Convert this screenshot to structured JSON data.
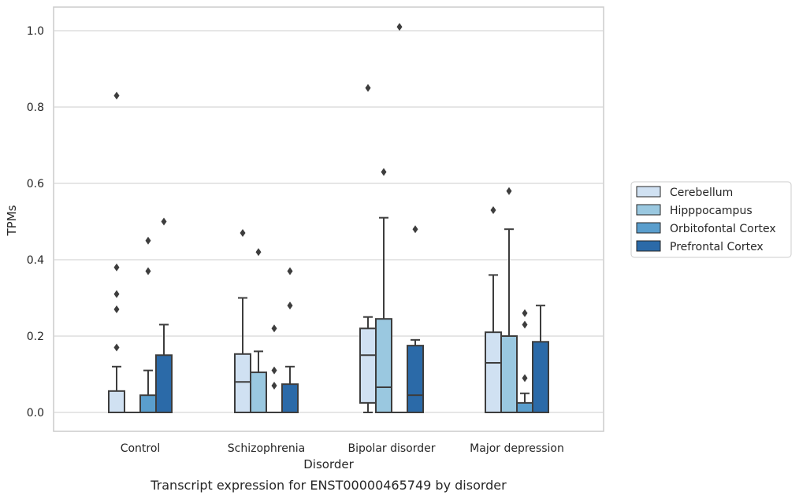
{
  "chart_data": {
    "type": "boxplot",
    "title": "",
    "caption": "Transcript expression for ENST00000465749 by disorder",
    "xlabel": "Disorder",
    "ylabel": "TPMs",
    "ylim": [
      -0.05,
      1.06
    ],
    "yticks": [
      0.0,
      0.2,
      0.4,
      0.6,
      0.8,
      1.0
    ],
    "ytick_labels": [
      "0.0",
      "0.2",
      "0.4",
      "0.6",
      "0.8",
      "1.0"
    ],
    "grid": "horizontal",
    "legend_position": "right",
    "categories": [
      "Control",
      "Schizophrenia",
      "Bipolar disorder",
      "Major depression"
    ],
    "series": [
      {
        "name": "Cerebellum",
        "color": "#d0e1f2",
        "boxes": [
          {
            "q1": 0.0,
            "median": 0.0,
            "q3": 0.056,
            "whisker_low": 0.0,
            "whisker_high": 0.12,
            "outliers": [
              0.17,
              0.27,
              0.31,
              0.38,
              0.83
            ]
          },
          {
            "q1": 0.0,
            "median": 0.08,
            "q3": 0.153,
            "whisker_low": 0.0,
            "whisker_high": 0.3,
            "outliers": [
              0.47
            ]
          },
          {
            "q1": 0.025,
            "median": 0.15,
            "q3": 0.22,
            "whisker_low": 0.0,
            "whisker_high": 0.25,
            "outliers": [
              0.85
            ]
          },
          {
            "q1": 0.0,
            "median": 0.13,
            "q3": 0.21,
            "whisker_low": 0.0,
            "whisker_high": 0.36,
            "outliers": [
              0.53
            ]
          }
        ]
      },
      {
        "name": "Hipppocampus",
        "color": "#9ac8e0",
        "boxes": [
          {
            "q1": 0.0,
            "median": 0.0,
            "q3": 0.0,
            "whisker_low": 0.0,
            "whisker_high": 0.0,
            "outliers": []
          },
          {
            "q1": 0.0,
            "median": 0.0,
            "q3": 0.105,
            "whisker_low": 0.0,
            "whisker_high": 0.16,
            "outliers": [
              0.42
            ]
          },
          {
            "q1": 0.0,
            "median": 0.066,
            "q3": 0.245,
            "whisker_low": 0.0,
            "whisker_high": 0.51,
            "outliers": [
              0.63
            ]
          },
          {
            "q1": 0.0,
            "median": 0.0,
            "q3": 0.2,
            "whisker_low": 0.0,
            "whisker_high": 0.48,
            "outliers": [
              0.58
            ]
          }
        ]
      },
      {
        "name": "Orbitofontal Cortex",
        "color": "#5a9ecd",
        "boxes": [
          {
            "q1": 0.0,
            "median": 0.0,
            "q3": 0.045,
            "whisker_low": 0.0,
            "whisker_high": 0.11,
            "outliers": [
              0.37,
              0.45
            ]
          },
          {
            "q1": 0.0,
            "median": 0.0,
            "q3": 0.0,
            "whisker_low": 0.0,
            "whisker_high": 0.0,
            "outliers": [
              0.07,
              0.11,
              0.22
            ]
          },
          {
            "q1": 0.0,
            "median": 0.0,
            "q3": 0.0,
            "whisker_low": 0.0,
            "whisker_high": 0.0,
            "outliers": [
              1.01
            ]
          },
          {
            "q1": 0.0,
            "median": 0.0,
            "q3": 0.025,
            "whisker_low": 0.0,
            "whisker_high": 0.05,
            "outliers": [
              0.09,
              0.23,
              0.26
            ]
          }
        ]
      },
      {
        "name": "Prefrontal Cortex",
        "color": "#2b6aa8",
        "boxes": [
          {
            "q1": 0.0,
            "median": 0.0,
            "q3": 0.15,
            "whisker_low": 0.0,
            "whisker_high": 0.23,
            "outliers": [
              0.5
            ]
          },
          {
            "q1": 0.0,
            "median": 0.0,
            "q3": 0.074,
            "whisker_low": 0.0,
            "whisker_high": 0.12,
            "outliers": [
              0.28,
              0.37
            ]
          },
          {
            "q1": 0.0,
            "median": 0.045,
            "q3": 0.175,
            "whisker_low": 0.0,
            "whisker_high": 0.19,
            "outliers": [
              0.48
            ]
          },
          {
            "q1": 0.0,
            "median": 0.0,
            "q3": 0.185,
            "whisker_low": 0.0,
            "whisker_high": 0.28,
            "outliers": []
          }
        ]
      }
    ]
  }
}
